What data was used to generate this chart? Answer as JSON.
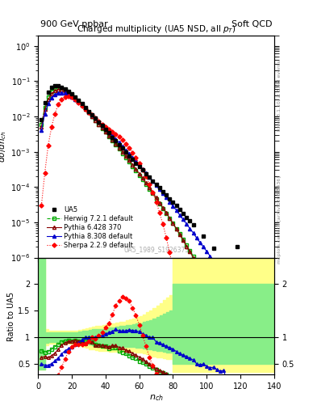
{
  "title_left": "900 GeV ppbar",
  "title_right": "Soft QCD",
  "plot_title": "Charged multiplicity (UA5 NSD, all $p_T$)",
  "xlabel": "n_{ch}",
  "ylabel_top": "dσ/dn_{ch}",
  "ylabel_bottom": "Ratio to UA5",
  "watermark": "UA5_1989_S1926373",
  "right_label": "mcplots.cern.ch [arXiv:1306.3436]",
  "right_label2": "Rivet 3.1.10, ≥ 3.4M events",
  "ylim_top_lo": 1e-06,
  "ylim_top_hi": 2.0,
  "ylim_bottom_lo": 0.3,
  "ylim_bottom_hi": 2.5,
  "xlim": [
    0,
    140
  ],
  "ua5_x": [
    2,
    4,
    6,
    8,
    10,
    12,
    14,
    16,
    18,
    20,
    22,
    24,
    26,
    28,
    30,
    32,
    34,
    36,
    38,
    40,
    42,
    44,
    46,
    48,
    50,
    52,
    54,
    56,
    58,
    60,
    62,
    64,
    66,
    68,
    70,
    72,
    74,
    76,
    78,
    80,
    82,
    84,
    86,
    88,
    90,
    92,
    98,
    104,
    110,
    118,
    128
  ],
  "ua5_y": [
    0.008,
    0.025,
    0.048,
    0.067,
    0.075,
    0.075,
    0.068,
    0.06,
    0.052,
    0.044,
    0.036,
    0.029,
    0.023,
    0.018,
    0.014,
    0.011,
    0.009,
    0.007,
    0.0055,
    0.0043,
    0.0034,
    0.0026,
    0.002,
    0.0016,
    0.00125,
    0.00098,
    0.00077,
    0.00061,
    0.00048,
    0.00038,
    0.0003,
    0.00024,
    0.00019,
    0.00015,
    0.00012,
    9.5e-05,
    7.5e-05,
    6e-05,
    4.7e-05,
    3.7e-05,
    3e-05,
    2.3e-05,
    1.8e-05,
    1.4e-05,
    1.1e-05,
    8.7e-06,
    4e-06,
    1.8e-06,
    8e-07,
    2e-06,
    6e-07
  ],
  "herwig_x": [
    2,
    4,
    6,
    8,
    10,
    12,
    14,
    16,
    18,
    20,
    22,
    24,
    26,
    28,
    30,
    32,
    34,
    36,
    38,
    40,
    42,
    44,
    46,
    48,
    50,
    52,
    54,
    56,
    58,
    60,
    62,
    64,
    66,
    68,
    70,
    72,
    74,
    76,
    78,
    80,
    82,
    84,
    86,
    88,
    90,
    92,
    94,
    96,
    98,
    100,
    102,
    104,
    106,
    108,
    110,
    112,
    114,
    116,
    118,
    120,
    122,
    124,
    126,
    128,
    130
  ],
  "herwig_y": [
    0.006,
    0.018,
    0.035,
    0.052,
    0.062,
    0.065,
    0.062,
    0.056,
    0.049,
    0.041,
    0.034,
    0.027,
    0.021,
    0.017,
    0.013,
    0.01,
    0.0078,
    0.006,
    0.0046,
    0.0036,
    0.0027,
    0.0021,
    0.0016,
    0.0012,
    0.0009,
    0.00068,
    0.00051,
    0.00038,
    0.00029,
    0.00021,
    0.00016,
    0.00012,
    8.8e-05,
    6.5e-05,
    4.7e-05,
    3.4e-05,
    2.5e-05,
    1.8e-05,
    1.3e-05,
    9.3e-06,
    6.6e-06,
    4.7e-06,
    3.3e-06,
    2.3e-06,
    1.6e-06,
    1.1e-06,
    7.5e-07,
    5e-07,
    3.3e-07,
    2.2e-07,
    1.4e-07,
    9e-08,
    5.7e-08,
    3.5e-08,
    2.2e-08,
    1.3e-08,
    8e-09,
    4.7e-09,
    2.8e-09,
    1.6e-09,
    9e-10,
    5e-10,
    2.7e-10,
    1.4e-10,
    7e-11
  ],
  "pythia6_x": [
    2,
    4,
    6,
    8,
    10,
    12,
    14,
    16,
    18,
    20,
    22,
    24,
    26,
    28,
    30,
    32,
    34,
    36,
    38,
    40,
    42,
    44,
    46,
    48,
    50,
    52,
    54,
    56,
    58,
    60,
    62,
    64,
    66,
    68,
    70,
    72,
    74,
    76,
    78,
    80,
    82,
    84,
    86,
    88,
    90,
    92,
    94,
    96,
    98,
    100,
    102,
    104,
    106,
    108,
    110,
    112,
    114,
    116,
    118
  ],
  "pythia6_y": [
    0.005,
    0.016,
    0.03,
    0.044,
    0.053,
    0.058,
    0.058,
    0.054,
    0.048,
    0.041,
    0.034,
    0.027,
    0.021,
    0.016,
    0.013,
    0.01,
    0.0077,
    0.006,
    0.0047,
    0.0036,
    0.0028,
    0.0022,
    0.0017,
    0.0013,
    0.001,
    0.00075,
    0.00057,
    0.00043,
    0.00032,
    0.00024,
    0.00018,
    0.00013,
    9.5e-05,
    6.9e-05,
    5e-05,
    3.6e-05,
    2.6e-05,
    1.9e-05,
    1.3e-05,
    9.3e-06,
    6.5e-06,
    4.5e-06,
    3.1e-06,
    2.1e-06,
    1.5e-06,
    1e-06,
    6.8e-07,
    4.5e-07,
    3e-07,
    1.9e-07,
    1.2e-07,
    7.7e-08,
    4.9e-08,
    3e-08,
    1.9e-08,
    1.1e-08,
    6.7e-09,
    3.9e-09,
    2.2e-09
  ],
  "pythia8_x": [
    2,
    4,
    6,
    8,
    10,
    12,
    14,
    16,
    18,
    20,
    22,
    24,
    26,
    28,
    30,
    32,
    34,
    36,
    38,
    40,
    42,
    44,
    46,
    48,
    50,
    52,
    54,
    56,
    58,
    60,
    62,
    64,
    66,
    68,
    70,
    72,
    74,
    76,
    78,
    80,
    82,
    84,
    86,
    88,
    90,
    92,
    94,
    96,
    98,
    100,
    102,
    104,
    106,
    108,
    110,
    112,
    114,
    116,
    118,
    120,
    122,
    124,
    126,
    128,
    130
  ],
  "pythia8_y": [
    0.004,
    0.012,
    0.023,
    0.034,
    0.042,
    0.046,
    0.047,
    0.045,
    0.041,
    0.036,
    0.031,
    0.026,
    0.022,
    0.018,
    0.014,
    0.011,
    0.009,
    0.0072,
    0.0057,
    0.0046,
    0.0037,
    0.0029,
    0.0023,
    0.0018,
    0.0014,
    0.0011,
    0.00088,
    0.00069,
    0.00054,
    0.00042,
    0.00032,
    0.00025,
    0.00019,
    0.00015,
    0.00011,
    8.5e-05,
    6.5e-05,
    5e-05,
    3.8e-05,
    2.9e-05,
    2.2e-05,
    1.6e-05,
    1.2e-05,
    9e-06,
    6.7e-06,
    5e-06,
    3.6e-06,
    2.7e-06,
    2e-06,
    1.5e-06,
    1.1e-06,
    7.9e-07,
    5.8e-07,
    4.2e-07,
    3e-07,
    2.2e-07,
    1.6e-07,
    1.1e-07,
    8e-08,
    5.7e-08,
    4e-08,
    2.8e-08,
    1.9e-08,
    1.3e-08,
    8.8e-09
  ],
  "sherpa_x": [
    2,
    4,
    6,
    8,
    10,
    12,
    14,
    16,
    18,
    20,
    22,
    24,
    26,
    28,
    30,
    32,
    34,
    36,
    38,
    40,
    42,
    44,
    46,
    48,
    50,
    52,
    54,
    56,
    58,
    60,
    62,
    64,
    66,
    68,
    70,
    72,
    74,
    76,
    78,
    80,
    82,
    84,
    86,
    88,
    90,
    92,
    94,
    96,
    98,
    100,
    102,
    104,
    106,
    108,
    110,
    112,
    114
  ],
  "sherpa_y": [
    3e-05,
    0.00025,
    0.0015,
    0.005,
    0.012,
    0.022,
    0.03,
    0.036,
    0.038,
    0.036,
    0.031,
    0.025,
    0.02,
    0.016,
    0.013,
    0.011,
    0.0088,
    0.0072,
    0.006,
    0.0051,
    0.0043,
    0.0037,
    0.0032,
    0.0027,
    0.0022,
    0.0017,
    0.0013,
    0.00095,
    0.00068,
    0.00047,
    0.00031,
    0.0002,
    0.00012,
    7e-05,
    3.8e-05,
    1.9e-05,
    8.9e-06,
    3.7e-06,
    1.4e-06,
    4.5e-07,
    1.3e-07,
    3.2e-08,
    7e-09,
    1.3e-09,
    2.1e-10,
    3e-11,
    3.5e-12,
    3.5e-13,
    3e-14,
    2e-15,
    1e-16,
    4e-18,
    1.2e-19,
    2.5e-21,
    3.5e-23,
    3.5e-25,
    3e-27
  ],
  "colors": {
    "ua5": "#000000",
    "herwig": "#00aa00",
    "pythia6": "#880000",
    "pythia8": "#0000cc",
    "sherpa": "#ff0000"
  },
  "band_yellow_x": [
    0,
    2,
    4,
    6,
    8,
    10,
    12,
    14,
    16,
    18,
    20,
    22,
    24,
    26,
    28,
    30,
    32,
    34,
    36,
    38,
    40,
    42,
    44,
    46,
    48,
    50,
    52,
    54,
    56,
    58,
    60,
    62,
    64,
    66,
    68,
    70,
    72,
    74,
    76,
    78,
    80,
    82,
    84,
    86,
    88,
    90,
    92,
    94,
    96,
    98,
    100,
    102,
    104,
    106,
    108,
    110,
    112,
    114,
    116,
    118,
    120,
    122,
    124,
    126,
    128,
    130,
    140
  ],
  "band_yellow_lo": [
    0.4,
    0.4,
    0.85,
    0.88,
    0.88,
    0.88,
    0.88,
    0.88,
    0.88,
    0.88,
    0.88,
    0.88,
    0.84,
    0.82,
    0.8,
    0.78,
    0.77,
    0.76,
    0.75,
    0.74,
    0.74,
    0.73,
    0.73,
    0.73,
    0.73,
    0.73,
    0.73,
    0.73,
    0.73,
    0.72,
    0.71,
    0.7,
    0.68,
    0.66,
    0.64,
    0.63,
    0.62,
    0.61,
    0.6,
    0.59,
    0.35,
    0.35,
    0.35,
    0.35,
    0.35,
    0.35,
    0.35,
    0.35,
    0.35,
    0.35,
    0.35,
    0.35,
    0.35,
    0.35,
    0.35,
    0.35,
    0.35,
    0.35,
    0.35,
    0.35,
    0.35,
    0.35,
    0.35,
    0.35,
    0.35,
    0.35,
    0.35
  ],
  "band_yellow_hi": [
    2.5,
    2.5,
    1.15,
    1.12,
    1.12,
    1.12,
    1.12,
    1.12,
    1.12,
    1.12,
    1.12,
    1.13,
    1.14,
    1.16,
    1.17,
    1.18,
    1.2,
    1.21,
    1.22,
    1.23,
    1.25,
    1.26,
    1.27,
    1.28,
    1.29,
    1.3,
    1.32,
    1.34,
    1.36,
    1.38,
    1.4,
    1.43,
    1.47,
    1.51,
    1.55,
    1.6,
    1.65,
    1.7,
    1.75,
    1.8,
    2.5,
    2.5,
    2.5,
    2.5,
    2.5,
    2.5,
    2.5,
    2.5,
    2.5,
    2.5,
    2.5,
    2.5,
    2.5,
    2.5,
    2.5,
    2.5,
    2.5,
    2.5,
    2.5,
    2.5,
    2.5,
    2.5,
    2.5,
    2.5,
    2.5,
    2.5,
    2.5
  ],
  "band_green_x": [
    0,
    2,
    4,
    6,
    8,
    10,
    12,
    14,
    16,
    18,
    20,
    22,
    24,
    26,
    28,
    30,
    32,
    34,
    36,
    38,
    40,
    42,
    44,
    46,
    48,
    50,
    52,
    54,
    56,
    58,
    60,
    62,
    64,
    66,
    68,
    70,
    72,
    74,
    76,
    78,
    80,
    82,
    84,
    86,
    88,
    90,
    92,
    94,
    96,
    98,
    100,
    102,
    104,
    106,
    108,
    110,
    112,
    114,
    116,
    118,
    120,
    122,
    124,
    126,
    128,
    130,
    140
  ],
  "band_green_lo": [
    0.4,
    0.4,
    0.9,
    0.91,
    0.91,
    0.91,
    0.91,
    0.91,
    0.91,
    0.91,
    0.91,
    0.91,
    0.9,
    0.89,
    0.88,
    0.87,
    0.86,
    0.85,
    0.84,
    0.83,
    0.83,
    0.82,
    0.82,
    0.82,
    0.82,
    0.82,
    0.82,
    0.82,
    0.82,
    0.81,
    0.8,
    0.79,
    0.78,
    0.77,
    0.76,
    0.75,
    0.74,
    0.73,
    0.72,
    0.71,
    0.5,
    0.5,
    0.5,
    0.5,
    0.5,
    0.5,
    0.5,
    0.5,
    0.5,
    0.5,
    0.5,
    0.5,
    0.5,
    0.5,
    0.5,
    0.5,
    0.5,
    0.5,
    0.5,
    0.5,
    0.5,
    0.5,
    0.5,
    0.5,
    0.5,
    0.5,
    0.5
  ],
  "band_green_hi": [
    2.5,
    2.5,
    1.1,
    1.09,
    1.09,
    1.09,
    1.09,
    1.09,
    1.09,
    1.09,
    1.09,
    1.1,
    1.11,
    1.12,
    1.13,
    1.14,
    1.15,
    1.15,
    1.15,
    1.16,
    1.17,
    1.18,
    1.19,
    1.2,
    1.21,
    1.22,
    1.23,
    1.24,
    1.25,
    1.26,
    1.27,
    1.29,
    1.31,
    1.33,
    1.35,
    1.38,
    1.41,
    1.44,
    1.47,
    1.5,
    2.0,
    2.0,
    2.0,
    2.0,
    2.0,
    2.0,
    2.0,
    2.0,
    2.0,
    2.0,
    2.0,
    2.0,
    2.0,
    2.0,
    2.0,
    2.0,
    2.0,
    2.0,
    2.0,
    2.0,
    2.0,
    2.0,
    2.0,
    2.0,
    2.0,
    2.0,
    2.0
  ]
}
